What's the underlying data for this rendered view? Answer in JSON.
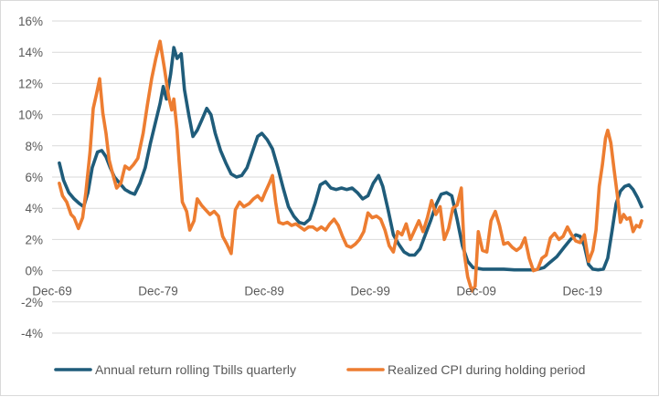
{
  "chart_data": {
    "type": "line",
    "title": "",
    "xlabel": "",
    "ylabel": "",
    "x_tick_labels": [
      "Dec-69",
      "Dec-79",
      "Dec-89",
      "Dec-99",
      "Dec-09",
      "Dec-19"
    ],
    "x_ticks_year": [
      1969.92,
      1979.92,
      1989.92,
      1999.92,
      2009.92,
      2019.92
    ],
    "xlim": [
      1969.92,
      2025.5
    ],
    "y_tick_labels": [
      "16%",
      "14%",
      "12%",
      "10%",
      "8%",
      "6%",
      "4%",
      "2%",
      "0%",
      "-2%",
      "-4%"
    ],
    "y_ticks": [
      16,
      14,
      12,
      10,
      8,
      6,
      4,
      2,
      0,
      -2,
      -4
    ],
    "ylim": [
      -4,
      16
    ],
    "grid": "horizontal",
    "legend_position": "bottom",
    "series": [
      {
        "name": "Annual return rolling Tbills quarterly",
        "color": "#1f5c7a",
        "points": [
          [
            1970.6,
            6.9
          ],
          [
            1971.0,
            5.8
          ],
          [
            1971.5,
            5.0
          ],
          [
            1972.0,
            4.6
          ],
          [
            1972.5,
            4.3
          ],
          [
            1972.9,
            4.1
          ],
          [
            1973.3,
            5.0
          ],
          [
            1973.7,
            6.6
          ],
          [
            1974.2,
            7.6
          ],
          [
            1974.6,
            7.7
          ],
          [
            1975.0,
            7.3
          ],
          [
            1975.4,
            6.6
          ],
          [
            1975.8,
            6.0
          ],
          [
            1976.3,
            5.6
          ],
          [
            1976.8,
            5.2
          ],
          [
            1977.3,
            5.0
          ],
          [
            1977.7,
            4.9
          ],
          [
            1978.2,
            5.6
          ],
          [
            1978.7,
            6.6
          ],
          [
            1979.2,
            8.2
          ],
          [
            1979.7,
            9.6
          ],
          [
            1980.1,
            10.7
          ],
          [
            1980.4,
            11.8
          ],
          [
            1980.7,
            11.0
          ],
          [
            1981.1,
            12.6
          ],
          [
            1981.4,
            14.3
          ],
          [
            1981.7,
            13.6
          ],
          [
            1982.1,
            13.9
          ],
          [
            1982.4,
            11.6
          ],
          [
            1982.8,
            10.0
          ],
          [
            1983.2,
            8.6
          ],
          [
            1983.6,
            9.0
          ],
          [
            1984.0,
            9.6
          ],
          [
            1984.5,
            10.4
          ],
          [
            1984.9,
            10.0
          ],
          [
            1985.3,
            8.8
          ],
          [
            1985.8,
            7.7
          ],
          [
            1986.3,
            6.9
          ],
          [
            1986.8,
            6.2
          ],
          [
            1987.3,
            6.0
          ],
          [
            1987.8,
            6.1
          ],
          [
            1988.3,
            6.6
          ],
          [
            1988.8,
            7.6
          ],
          [
            1989.3,
            8.6
          ],
          [
            1989.7,
            8.8
          ],
          [
            1990.2,
            8.4
          ],
          [
            1990.7,
            7.8
          ],
          [
            1991.2,
            6.6
          ],
          [
            1991.7,
            5.3
          ],
          [
            1992.2,
            4.1
          ],
          [
            1992.7,
            3.5
          ],
          [
            1993.2,
            3.1
          ],
          [
            1993.7,
            3.0
          ],
          [
            1994.2,
            3.3
          ],
          [
            1994.7,
            4.3
          ],
          [
            1995.2,
            5.5
          ],
          [
            1995.7,
            5.7
          ],
          [
            1996.2,
            5.3
          ],
          [
            1996.7,
            5.2
          ],
          [
            1997.2,
            5.3
          ],
          [
            1997.7,
            5.2
          ],
          [
            1998.2,
            5.3
          ],
          [
            1998.7,
            5.0
          ],
          [
            1999.2,
            4.6
          ],
          [
            1999.7,
            4.8
          ],
          [
            2000.2,
            5.6
          ],
          [
            2000.7,
            6.1
          ],
          [
            2001.1,
            5.4
          ],
          [
            2001.6,
            3.9
          ],
          [
            2002.1,
            2.3
          ],
          [
            2002.6,
            1.7
          ],
          [
            2003.1,
            1.2
          ],
          [
            2003.6,
            1.0
          ],
          [
            2004.1,
            1.0
          ],
          [
            2004.6,
            1.4
          ],
          [
            2005.1,
            2.3
          ],
          [
            2005.6,
            3.2
          ],
          [
            2006.1,
            4.2
          ],
          [
            2006.6,
            4.9
          ],
          [
            2007.1,
            5.0
          ],
          [
            2007.6,
            4.8
          ],
          [
            2008.1,
            3.3
          ],
          [
            2008.6,
            1.6
          ],
          [
            2009.1,
            0.6
          ],
          [
            2009.6,
            0.2
          ],
          [
            2010.5,
            0.1
          ],
          [
            2011.5,
            0.1
          ],
          [
            2012.5,
            0.1
          ],
          [
            2013.5,
            0.05
          ],
          [
            2014.5,
            0.05
          ],
          [
            2015.5,
            0.05
          ],
          [
            2016.3,
            0.2
          ],
          [
            2016.8,
            0.5
          ],
          [
            2017.5,
            0.9
          ],
          [
            2018.2,
            1.5
          ],
          [
            2018.8,
            2.0
          ],
          [
            2019.3,
            2.3
          ],
          [
            2019.7,
            2.2
          ],
          [
            2020.1,
            1.6
          ],
          [
            2020.5,
            0.4
          ],
          [
            2020.9,
            0.1
          ],
          [
            2021.4,
            0.05
          ],
          [
            2021.9,
            0.1
          ],
          [
            2022.3,
            0.8
          ],
          [
            2022.7,
            2.5
          ],
          [
            2023.1,
            4.3
          ],
          [
            2023.5,
            5.1
          ],
          [
            2023.9,
            5.4
          ],
          [
            2024.3,
            5.5
          ],
          [
            2024.7,
            5.2
          ],
          [
            2025.1,
            4.7
          ],
          [
            2025.5,
            4.1
          ]
        ]
      },
      {
        "name": "Realized CPI during holding period",
        "color": "#ed7d31",
        "points": [
          [
            1970.6,
            5.6
          ],
          [
            1970.9,
            4.8
          ],
          [
            1971.3,
            4.4
          ],
          [
            1971.7,
            3.6
          ],
          [
            1972.0,
            3.4
          ],
          [
            1972.4,
            2.7
          ],
          [
            1972.8,
            3.4
          ],
          [
            1973.1,
            5.0
          ],
          [
            1973.5,
            7.6
          ],
          [
            1973.8,
            10.4
          ],
          [
            1974.1,
            11.3
          ],
          [
            1974.4,
            12.3
          ],
          [
            1974.7,
            10.1
          ],
          [
            1975.0,
            8.8
          ],
          [
            1975.3,
            7.1
          ],
          [
            1975.6,
            6.3
          ],
          [
            1976.0,
            5.3
          ],
          [
            1976.4,
            5.6
          ],
          [
            1976.8,
            6.7
          ],
          [
            1977.2,
            6.5
          ],
          [
            1977.6,
            6.8
          ],
          [
            1978.0,
            7.2
          ],
          [
            1978.5,
            8.8
          ],
          [
            1978.9,
            10.6
          ],
          [
            1979.3,
            12.3
          ],
          [
            1979.7,
            13.6
          ],
          [
            1980.1,
            14.7
          ],
          [
            1980.5,
            13.0
          ],
          [
            1980.9,
            11.2
          ],
          [
            1981.2,
            10.3
          ],
          [
            1981.4,
            11.0
          ],
          [
            1981.7,
            9.0
          ],
          [
            1981.9,
            7.0
          ],
          [
            1982.2,
            4.4
          ],
          [
            1982.6,
            3.8
          ],
          [
            1982.9,
            2.6
          ],
          [
            1983.3,
            3.2
          ],
          [
            1983.6,
            4.6
          ],
          [
            1984.0,
            4.2
          ],
          [
            1984.4,
            3.9
          ],
          [
            1984.8,
            3.6
          ],
          [
            1985.2,
            3.8
          ],
          [
            1985.6,
            3.5
          ],
          [
            1986.0,
            2.2
          ],
          [
            1986.4,
            1.7
          ],
          [
            1986.8,
            1.1
          ],
          [
            1987.2,
            3.9
          ],
          [
            1987.6,
            4.4
          ],
          [
            1988.0,
            4.1
          ],
          [
            1988.5,
            4.3
          ],
          [
            1988.9,
            4.6
          ],
          [
            1989.3,
            4.8
          ],
          [
            1989.7,
            4.5
          ],
          [
            1990.0,
            5.0
          ],
          [
            1990.4,
            5.6
          ],
          [
            1990.7,
            6.1
          ],
          [
            1991.0,
            4.4
          ],
          [
            1991.3,
            3.1
          ],
          [
            1991.7,
            3.0
          ],
          [
            1992.1,
            3.1
          ],
          [
            1992.5,
            2.9
          ],
          [
            1992.9,
            3.0
          ],
          [
            1993.3,
            2.8
          ],
          [
            1993.7,
            2.6
          ],
          [
            1994.1,
            2.8
          ],
          [
            1994.5,
            2.8
          ],
          [
            1994.9,
            2.6
          ],
          [
            1995.3,
            2.8
          ],
          [
            1995.7,
            2.6
          ],
          [
            1996.1,
            3.0
          ],
          [
            1996.5,
            3.3
          ],
          [
            1996.9,
            2.9
          ],
          [
            1997.3,
            2.2
          ],
          [
            1997.7,
            1.6
          ],
          [
            1998.1,
            1.5
          ],
          [
            1998.5,
            1.7
          ],
          [
            1998.9,
            2.0
          ],
          [
            1999.3,
            2.5
          ],
          [
            1999.7,
            3.7
          ],
          [
            2000.1,
            3.4
          ],
          [
            2000.5,
            3.5
          ],
          [
            2000.9,
            3.3
          ],
          [
            2001.3,
            2.6
          ],
          [
            2001.7,
            1.6
          ],
          [
            2002.1,
            1.2
          ],
          [
            2002.5,
            2.5
          ],
          [
            2002.9,
            2.3
          ],
          [
            2003.3,
            3.0
          ],
          [
            2003.7,
            2.0
          ],
          [
            2004.1,
            2.6
          ],
          [
            2004.5,
            3.2
          ],
          [
            2004.9,
            2.5
          ],
          [
            2005.3,
            3.4
          ],
          [
            2005.7,
            4.5
          ],
          [
            2006.1,
            3.6
          ],
          [
            2006.5,
            4.1
          ],
          [
            2006.9,
            2.0
          ],
          [
            2007.3,
            2.7
          ],
          [
            2007.7,
            4.0
          ],
          [
            2008.1,
            4.2
          ],
          [
            2008.5,
            5.3
          ],
          [
            2008.8,
            1.0
          ],
          [
            2009.1,
            -0.4
          ],
          [
            2009.5,
            -1.3
          ],
          [
            2009.8,
            -1.0
          ],
          [
            2010.1,
            2.5
          ],
          [
            2010.5,
            1.3
          ],
          [
            2010.9,
            1.2
          ],
          [
            2011.3,
            3.2
          ],
          [
            2011.7,
            3.8
          ],
          [
            2012.1,
            2.9
          ],
          [
            2012.5,
            1.7
          ],
          [
            2012.9,
            1.8
          ],
          [
            2013.3,
            1.5
          ],
          [
            2013.7,
            1.3
          ],
          [
            2014.1,
            1.5
          ],
          [
            2014.5,
            2.1
          ],
          [
            2014.9,
            0.8
          ],
          [
            2015.3,
            0.0
          ],
          [
            2015.7,
            0.1
          ],
          [
            2016.1,
            0.8
          ],
          [
            2016.5,
            1.0
          ],
          [
            2016.9,
            2.1
          ],
          [
            2017.3,
            2.4
          ],
          [
            2017.7,
            2.0
          ],
          [
            2018.1,
            2.2
          ],
          [
            2018.5,
            2.8
          ],
          [
            2018.9,
            2.3
          ],
          [
            2019.3,
            1.9
          ],
          [
            2019.7,
            1.8
          ],
          [
            2020.1,
            2.3
          ],
          [
            2020.5,
            0.6
          ],
          [
            2020.9,
            1.3
          ],
          [
            2021.2,
            2.6
          ],
          [
            2021.5,
            5.4
          ],
          [
            2021.8,
            6.8
          ],
          [
            2022.1,
            8.5
          ],
          [
            2022.3,
            9.0
          ],
          [
            2022.6,
            8.2
          ],
          [
            2022.9,
            6.5
          ],
          [
            2023.2,
            4.9
          ],
          [
            2023.5,
            3.1
          ],
          [
            2023.8,
            3.6
          ],
          [
            2024.1,
            3.3
          ],
          [
            2024.4,
            3.4
          ],
          [
            2024.7,
            2.5
          ],
          [
            2025.0,
            2.9
          ],
          [
            2025.3,
            2.8
          ],
          [
            2025.5,
            3.2
          ]
        ]
      }
    ]
  }
}
